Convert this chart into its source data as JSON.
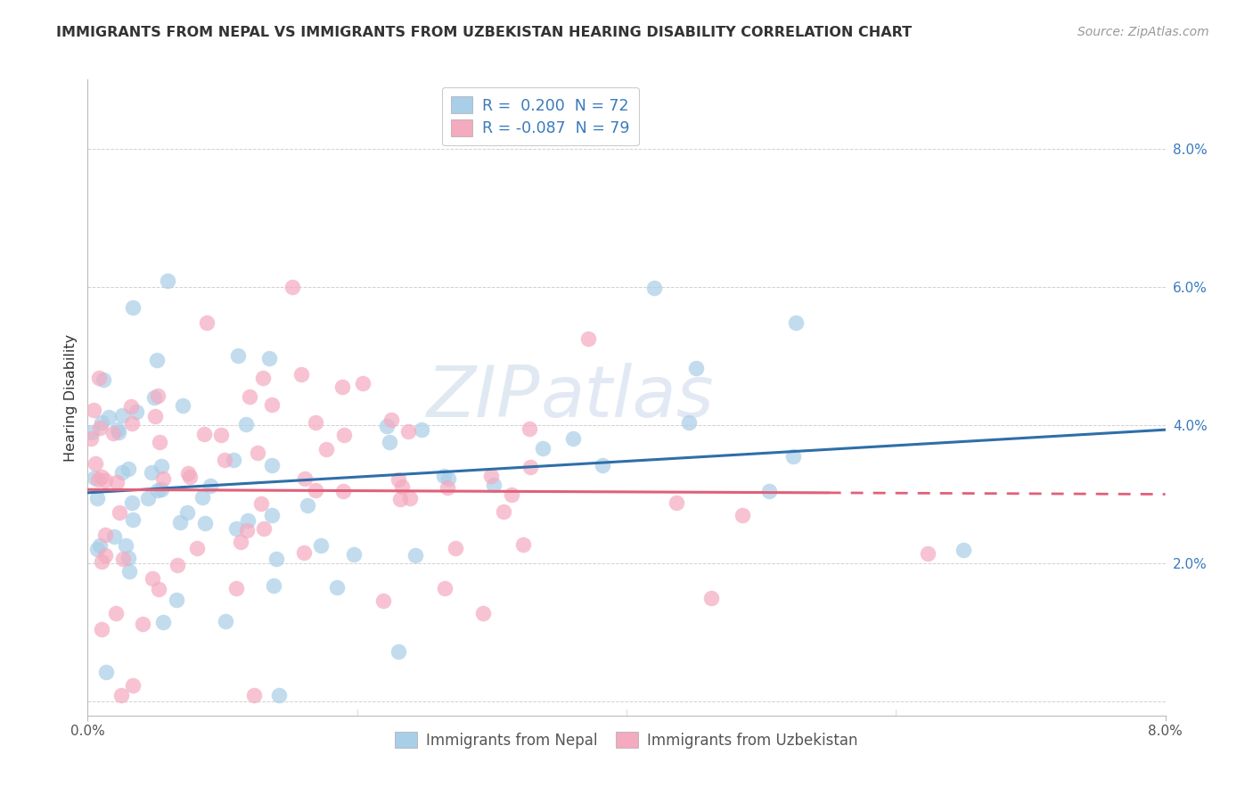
{
  "title": "IMMIGRANTS FROM NEPAL VS IMMIGRANTS FROM UZBEKISTAN HEARING DISABILITY CORRELATION CHART",
  "source": "Source: ZipAtlas.com",
  "ylabel": "Hearing Disability",
  "xlim": [
    0.0,
    0.08
  ],
  "ylim": [
    -0.002,
    0.09
  ],
  "color_nepal": "#A8CEE8",
  "color_uzbekistan": "#F4AABF",
  "line_color_nepal": "#2E6FA8",
  "line_color_uzbekistan": "#E0607A",
  "watermark_zip": "ZIP",
  "watermark_atlas": "atlas",
  "nepal_r": 0.2,
  "nepal_n": 72,
  "uzbek_r": -0.087,
  "uzbek_n": 79
}
